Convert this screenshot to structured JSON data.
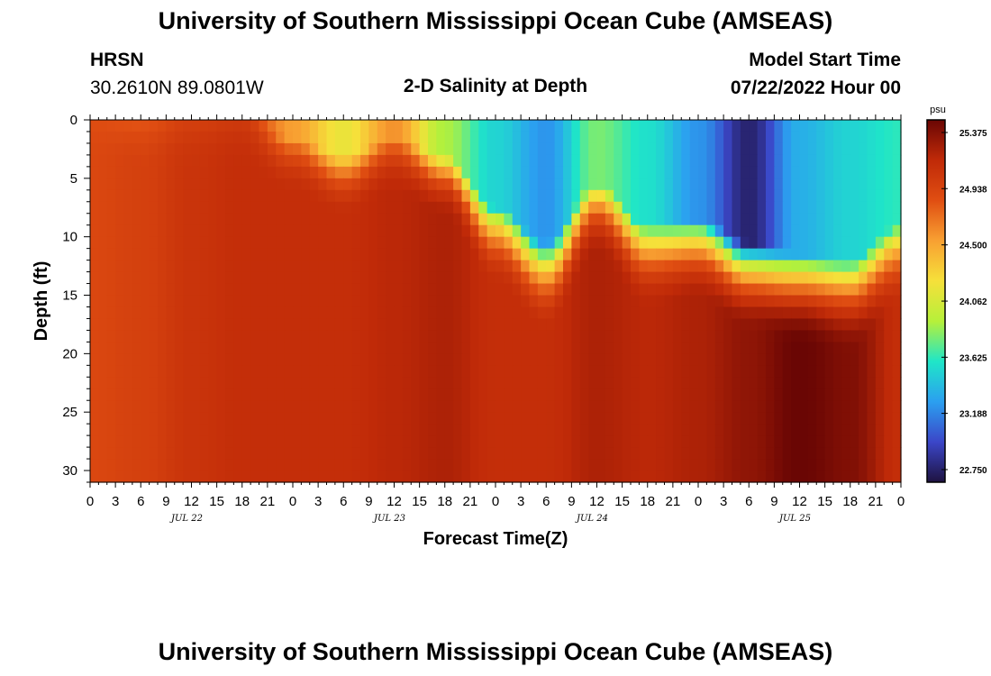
{
  "header": {
    "title": "University of Southern Mississippi Ocean Cube (AMSEAS)",
    "station_name": "HRSN",
    "coordinates": "30.2610N  89.0801W",
    "plot_title": "2-D Salinity at Depth",
    "model_label": "Model Start Time",
    "model_start": "07/22/2022 Hour 00"
  },
  "footer": {
    "title": "University of Southern Mississippi Ocean Cube (AMSEAS)"
  },
  "chart_data": {
    "type": "heatmap",
    "title": "2-D Salinity at Depth",
    "xlabel": "Forecast Time(Z)",
    "ylabel": "Depth (ft)",
    "x_range_hours": [
      0,
      96
    ],
    "y_range_ft": [
      0,
      31
    ],
    "y_inverted": true,
    "x_tick_labels": [
      "0",
      "3",
      "6",
      "9",
      "12",
      "15",
      "18",
      "21",
      "0",
      "3",
      "6",
      "9",
      "12",
      "15",
      "18",
      "21",
      "0",
      "3",
      "6",
      "9",
      "12",
      "15",
      "18",
      "21",
      "0",
      "3",
      "6",
      "9",
      "12",
      "15",
      "18",
      "21",
      "0"
    ],
    "day_labels": [
      "JUL 22",
      "JUL 23",
      "JUL 24",
      "JUL 25"
    ],
    "y_ticks": [
      0,
      5,
      10,
      15,
      20,
      25,
      30
    ],
    "colorbar": {
      "unit": "psu",
      "min": 22.75,
      "max": 25.375,
      "tick_values": [
        25.375,
        24.938,
        24.5,
        24.062,
        23.625,
        23.188,
        22.75
      ],
      "tick_labels": [
        "25.375",
        "24.938",
        "24.500",
        "24.062",
        "23.625",
        "23.188",
        "22.750"
      ],
      "stops": [
        "#1e1240",
        "#3b46c8",
        "#2b9ff0",
        "#1fe6c8",
        "#b6f03a",
        "#f6e03a",
        "#f8a032",
        "#e04e12",
        "#c02a08",
        "#6a0604"
      ]
    },
    "forecast_hours": [
      0,
      6,
      12,
      18,
      24,
      30,
      36,
      42,
      48,
      54,
      60,
      66,
      72,
      78,
      84,
      90,
      96
    ],
    "surface_salinity": [
      24.8,
      24.75,
      24.9,
      24.95,
      24.5,
      24.15,
      24.55,
      23.9,
      23.55,
      23.3,
      23.8,
      23.6,
      23.3,
      22.85,
      23.4,
      23.55,
      23.65
    ],
    "halocline_depth_ft": [
      0,
      0,
      0,
      0,
      1.5,
      3,
      1.5,
      3,
      7.5,
      10.5,
      5.5,
      9,
      8.5,
      10.5,
      11.5,
      12,
      9
    ],
    "deep_salinity_30ft": [
      24.85,
      24.9,
      25.0,
      25.05,
      25.05,
      25.05,
      25.1,
      25.15,
      25.05,
      25.05,
      25.15,
      25.1,
      25.15,
      25.25,
      25.38,
      25.3,
      25.05
    ]
  }
}
